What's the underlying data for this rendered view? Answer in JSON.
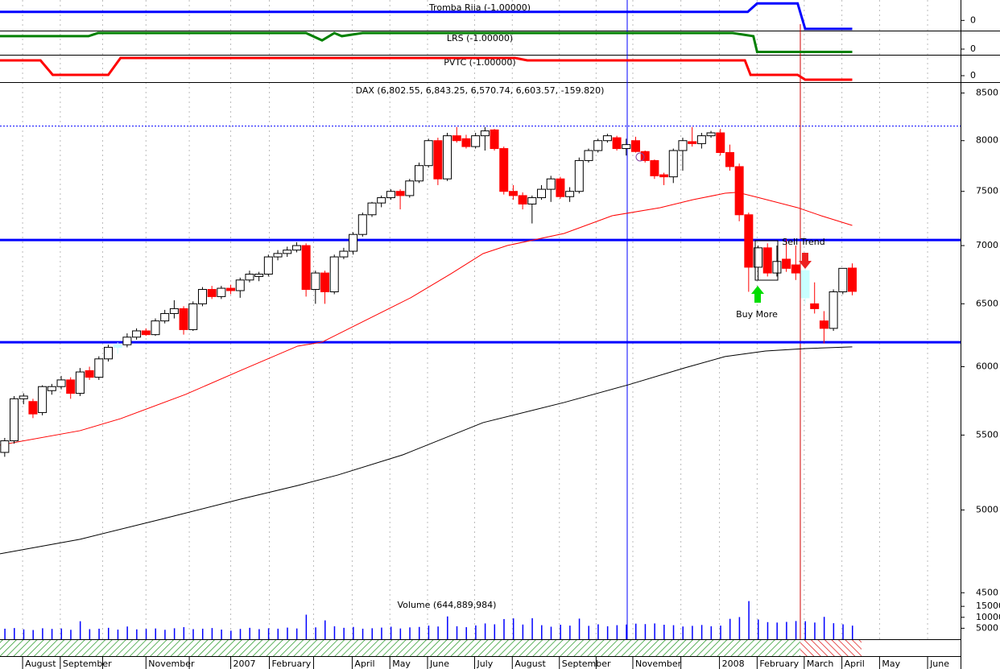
{
  "chart_data": [
    {
      "type": "line",
      "title": "Tromba Rija (-1.00000)",
      "color": "#0000ff",
      "xlim": [
        -0.5,
        101.5
      ],
      "ylim": [
        -1.2,
        2.4
      ],
      "yticks": [
        0
      ],
      "x": [
        -0.5,
        78.9,
        79.9,
        84.2,
        85,
        90
      ],
      "values": [
        1,
        1,
        2,
        2,
        -1,
        -1
      ]
    },
    {
      "type": "line",
      "title": "LRS (-1.00000)",
      "color": "#008000",
      "xlim": [
        -0.5,
        101.5
      ],
      "ylim": [
        -2,
        6
      ],
      "yticks": [
        0
      ],
      "x": [
        -0.5,
        8.9,
        9.9,
        32,
        33.7,
        35,
        35.8,
        38,
        77.3,
        79.5,
        79.9,
        90
      ],
      "values": [
        4.6,
        4.6,
        5.7,
        5.7,
        3.1,
        5.7,
        4.6,
        5.7,
        5.7,
        4.6,
        -1,
        -1
      ]
    },
    {
      "type": "line",
      "title": "PVTC (-1.00000)",
      "color": "#ff0000",
      "xlim": [
        -0.5,
        101.5
      ],
      "ylim": [
        -1.6,
        4.8
      ],
      "yticks": [
        0
      ],
      "x": [
        -0.5,
        3.8,
        5.1,
        11,
        12.3,
        54.2,
        55.5,
        78.6,
        79.2,
        84.2,
        85,
        90
      ],
      "values": [
        3.8,
        3.8,
        0.2,
        0.2,
        4.4,
        4.4,
        3.8,
        3.8,
        0.2,
        0.2,
        -1,
        -1
      ]
    },
    {
      "type": "candlestick",
      "title": "DAX (6,802.55, 6,843.25, 6,570.74, 6,603.57, -159.820)",
      "xlim": [
        -0.5,
        101.5
      ],
      "yscale": "log",
      "ylim": [
        4460,
        8610
      ],
      "yticks": [
        4500,
        5000,
        5500,
        6000,
        6500,
        7000,
        7500,
        8000,
        8500
      ],
      "up_color": "#ffffff",
      "down_color": "#ff0000",
      "highlight_color": "#c8ffff",
      "highlighted": [
        12,
        85
      ],
      "xticks": [
        {
          "value": 1.9,
          "label": "August"
        },
        {
          "value": 5.9,
          "label": "September"
        },
        {
          "value": 15,
          "label": "November"
        },
        {
          "value": 24,
          "label": "2007"
        },
        {
          "value": 28.1,
          "label": "February"
        },
        {
          "value": 36.9,
          "label": "April"
        },
        {
          "value": 40.9,
          "label": "May"
        },
        {
          "value": 44.9,
          "label": "June"
        },
        {
          "value": 49.9,
          "label": "July"
        },
        {
          "value": 53.9,
          "label": "August"
        },
        {
          "value": 58.9,
          "label": "September"
        },
        {
          "value": 66.7,
          "label": "November"
        },
        {
          "value": 75.9,
          "label": "2008"
        },
        {
          "value": 79.9,
          "label": "February"
        },
        {
          "value": 84.9,
          "label": "March"
        },
        {
          "value": 88.9,
          "label": "April"
        },
        {
          "value": 92.9,
          "label": "May"
        },
        {
          "value": 98,
          "label": "June"
        }
      ],
      "xgrid": [
        10.4,
        19.6,
        32.8,
        62.8,
        71.8
      ],
      "open": [
        5380,
        5460,
        5760,
        5740,
        5660,
        5820,
        5850,
        5900,
        5800,
        5970,
        5920,
        6060,
        6150,
        6170,
        6230,
        6280,
        6250,
        6360,
        6420,
        6460,
        6290,
        6500,
        6620,
        6560,
        6630,
        6610,
        6700,
        6730,
        6750,
        6900,
        6930,
        6960,
        7000,
        6620,
        6760,
        6600,
        6900,
        6950,
        7100,
        7280,
        7390,
        7440,
        7500,
        7460,
        7600,
        7750,
        8000,
        7620,
        8050,
        8020,
        7940,
        8050,
        8110,
        7920,
        7500,
        7460,
        7380,
        7440,
        7520,
        7620,
        7450,
        7500,
        7800,
        7900,
        8000,
        8030,
        7920,
        8000,
        7890,
        7800,
        7660,
        7640,
        7900,
        7990,
        7970,
        8050,
        8080,
        7880,
        7740,
        7280,
        6810,
        6980,
        6760,
        6880,
        6830,
        6780,
        6500,
        6360,
        6300,
        6600,
        6802.55
      ],
      "high": [
        5480,
        5780,
        5800,
        5760,
        5860,
        5870,
        5930,
        5920,
        5990,
        6000,
        6080,
        6170,
        6190,
        6260,
        6300,
        6300,
        6380,
        6450,
        6530,
        6480,
        6520,
        6640,
        6650,
        6650,
        6660,
        6720,
        6780,
        6770,
        6920,
        6960,
        6990,
        7030,
        7020,
        6780,
        6780,
        6920,
        6980,
        7120,
        7300,
        7400,
        7460,
        7520,
        7520,
        7620,
        7780,
        8020,
        8030,
        8080,
        8140,
        8060,
        8080,
        8140,
        8120,
        7940,
        7560,
        7490,
        7460,
        7560,
        7650,
        7640,
        7540,
        7830,
        7920,
        8020,
        8070,
        8050,
        8020,
        8040,
        7900,
        7810,
        7680,
        7920,
        8030,
        8140,
        8080,
        8100,
        8120,
        7960,
        7770,
        7300,
        7000,
        7020,
        7000,
        7060,
        7000,
        6800,
        6680,
        6440,
        6620,
        6800,
        6843.25
      ],
      "low": [
        5350,
        5440,
        5720,
        5620,
        5640,
        5790,
        5830,
        5760,
        5780,
        5900,
        5900,
        6040,
        6100,
        6150,
        6210,
        6240,
        6240,
        6340,
        6380,
        6250,
        6280,
        6480,
        6540,
        6540,
        6580,
        6550,
        6680,
        6690,
        6730,
        6870,
        6900,
        6940,
        6560,
        6500,
        6500,
        6580,
        6880,
        6920,
        7080,
        7260,
        7350,
        7420,
        7330,
        7440,
        7580,
        7730,
        7560,
        7600,
        7980,
        7920,
        7920,
        7900,
        7900,
        7470,
        7420,
        7330,
        7200,
        7420,
        7400,
        7430,
        7400,
        7480,
        7780,
        7880,
        7980,
        7900,
        7850,
        7880,
        7780,
        7620,
        7560,
        7580,
        7700,
        7940,
        7920,
        8030,
        7850,
        7700,
        7220,
        6600,
        6700,
        6730,
        6730,
        6770,
        6700,
        6500,
        6420,
        6180,
        6280,
        6580,
        6570.74
      ],
      "close": [
        5460,
        5760,
        5780,
        5650,
        5850,
        5850,
        5900,
        5800,
        5960,
        5920,
        6060,
        6150,
        6170,
        6230,
        6280,
        6250,
        6360,
        6420,
        6460,
        6290,
        6500,
        6620,
        6560,
        6630,
        6610,
        6700,
        6750,
        6750,
        6900,
        6930,
        6960,
        7000,
        6620,
        6760,
        6600,
        6900,
        6950,
        7100,
        7280,
        7390,
        7440,
        7500,
        7460,
        7600,
        7750,
        8000,
        7620,
        8050,
        8000,
        7940,
        8050,
        8100,
        7920,
        7500,
        7460,
        7380,
        7440,
        7520,
        7620,
        7450,
        7500,
        7800,
        7900,
        8000,
        8050,
        7920,
        7960,
        7890,
        7800,
        7650,
        7640,
        7900,
        8000,
        7970,
        8050,
        8080,
        7880,
        7740,
        7280,
        6810,
        6980,
        6760,
        6860,
        6800,
        6760,
        6550,
        6460,
        6300,
        6600,
        6800,
        6603.57
      ],
      "lines": [
        {
          "color": "#ff0000",
          "x": [
            -0.5,
            8,
            12.3,
            19.2,
            25.1,
            31.1,
            33.7,
            38.8,
            43.1,
            47.4,
            50.8,
            53.4,
            59.4,
            64.5,
            69.6,
            73.1,
            76.5,
            77.8,
            79.9,
            84.2,
            86.7,
            90
          ],
          "values": [
            5430,
            5531,
            5616,
            5792,
            5973,
            6159,
            6191,
            6383,
            6550,
            6754,
            6929,
            7001,
            7109,
            7271,
            7346,
            7421,
            7482,
            7491,
            7444,
            7346,
            7271,
            7182
          ]
        },
        {
          "color": "#000000",
          "x": [
            -0.5,
            8,
            16.6,
            25.1,
            31.1,
            35.4,
            42.3,
            50.8,
            59.4,
            66.2,
            72.2,
            76.5,
            80.8,
            85,
            90
          ],
          "values": [
            4729,
            4817,
            4941,
            5070,
            5158,
            5228,
            5364,
            5588,
            5733,
            5863,
            5991,
            6078,
            6121,
            6140,
            6153
          ]
        }
      ],
      "hlines": [
        {
          "value": 8150,
          "color": "#0000ff",
          "dashed": true
        },
        {
          "value": 7050,
          "color": "#0000ff",
          "dashed": false
        },
        {
          "value": 6190,
          "color": "#0000ff",
          "dashed": false
        }
      ],
      "annotations": [
        "Buy More",
        "Sell Trend"
      ]
    },
    {
      "type": "bar",
      "title": "Volume (644,889,984)",
      "color": "#0000ff",
      "xlim": [
        -0.5,
        101.5
      ],
      "ylim": [
        0,
        18000
      ],
      "yticks": [
        5000,
        10000,
        15000
      ],
      "values": [
        4800,
        5100,
        4500,
        4200,
        5000,
        4700,
        4900,
        4300,
        8200,
        4600,
        4800,
        5200,
        4400,
        5800,
        4500,
        4700,
        4900,
        4300,
        5000,
        5500,
        4600,
        4800,
        5100,
        4400,
        3900,
        4700,
        5200,
        4600,
        5000,
        4800,
        5300,
        4900,
        11200,
        5400,
        8600,
        5900,
        5200,
        5600,
        4800,
        5000,
        5300,
        5700,
        4900,
        5400,
        5600,
        6200,
        5800,
        10400,
        5900,
        5500,
        6300,
        7200,
        6800,
        9200,
        9500,
        6700,
        9600,
        6400,
        5700,
        6600,
        6200,
        9400,
        6100,
        6800,
        5900,
        6400,
        6700,
        7100,
        6900,
        7200,
        6600,
        6400,
        5800,
        6100,
        6500,
        5900,
        6200,
        9300,
        10100,
        17400,
        9000,
        7800,
        7600,
        7900,
        8300,
        8200,
        7600,
        10200,
        7300,
        6800,
        6200
      ]
    }
  ]
}
